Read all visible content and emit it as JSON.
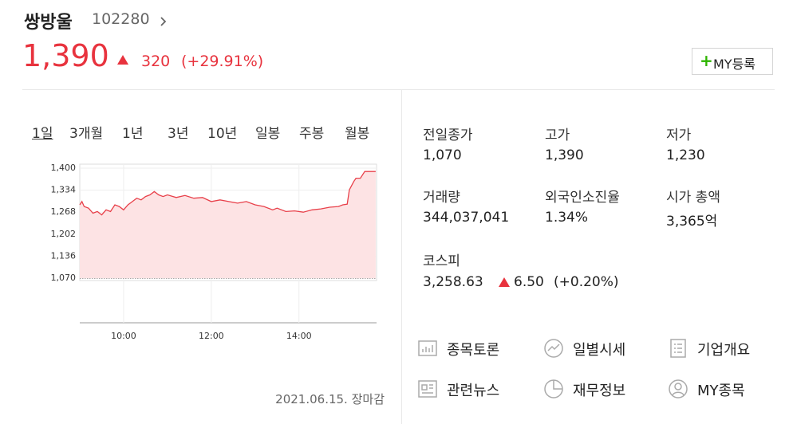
{
  "stock": {
    "name": "쌍방울",
    "code": "102280",
    "price": "1,390",
    "change": "320",
    "change_rate": "(+29.91%)"
  },
  "button": "MY등록",
  "tabs": [
    "1일",
    "3개월",
    "1년",
    "3년",
    "10년",
    "일봉",
    "주봉",
    "월봉"
  ],
  "info": [
    {
      "label": "전일종가",
      "value": "1,070"
    },
    {
      "label": "고가",
      "value": "1,390"
    },
    {
      "label": "저가",
      "value": "1,230"
    },
    {
      "label": "거래량",
      "value": "344,037,041"
    },
    {
      "label": "외국인소진율",
      "value": "1.34%"
    },
    {
      "label": "시가 총액",
      "value": "3,365억"
    }
  ],
  "index": {
    "name": "코스피",
    "value": "3,258.63",
    "change": "6.50",
    "change_rate": "(+0.20%)"
  },
  "links": [
    "종목토론",
    "일별시세",
    "기업개요",
    "관련뉴스",
    "재무정보",
    "MY종목"
  ],
  "footer": "2021.06.15. 장마감",
  "chart_data": {
    "type": "line",
    "color": "#e8404a",
    "area_color": "#fde3e4",
    "grid": true,
    "x": [
      9.0,
      9.05,
      9.1,
      9.2,
      9.3,
      9.4,
      9.5,
      9.6,
      9.7,
      9.8,
      9.9,
      10.0,
      10.1,
      10.2,
      10.3,
      10.4,
      10.5,
      10.6,
      10.7,
      10.8,
      10.9,
      11.0,
      11.2,
      11.4,
      11.6,
      11.8,
      12.0,
      12.2,
      12.4,
      12.6,
      12.8,
      13.0,
      13.2,
      13.4,
      13.5,
      13.7,
      13.9,
      14.1,
      14.3,
      14.5,
      14.7,
      14.9,
      15.0,
      15.1,
      15.15,
      15.25,
      15.3,
      15.4,
      15.5,
      15.75
    ],
    "values": [
      1290,
      1300,
      1285,
      1280,
      1265,
      1270,
      1260,
      1275,
      1270,
      1290,
      1285,
      1275,
      1290,
      1300,
      1310,
      1305,
      1315,
      1320,
      1330,
      1320,
      1315,
      1320,
      1312,
      1318,
      1310,
      1312,
      1300,
      1305,
      1300,
      1295,
      1300,
      1290,
      1285,
      1275,
      1280,
      1270,
      1272,
      1268,
      1275,
      1278,
      1283,
      1285,
      1290,
      1292,
      1335,
      1360,
      1370,
      1370,
      1390,
      1390
    ],
    "xlim": [
      9,
      15.77
    ],
    "xticks": [
      {
        "value": 10,
        "label": "10:00"
      },
      {
        "value": 12,
        "label": "12:00"
      },
      {
        "value": 14,
        "label": "14:00"
      }
    ],
    "ylim": [
      1063,
      1412
    ],
    "yticks": [
      {
        "value": 1400,
        "label": "1,400"
      },
      {
        "value": 1334,
        "label": "1,334"
      },
      {
        "value": 1268,
        "label": "1,268"
      },
      {
        "value": 1202,
        "label": "1,202"
      },
      {
        "value": 1136,
        "label": "1,136"
      },
      {
        "value": 1070,
        "label": "1,070"
      }
    ]
  }
}
